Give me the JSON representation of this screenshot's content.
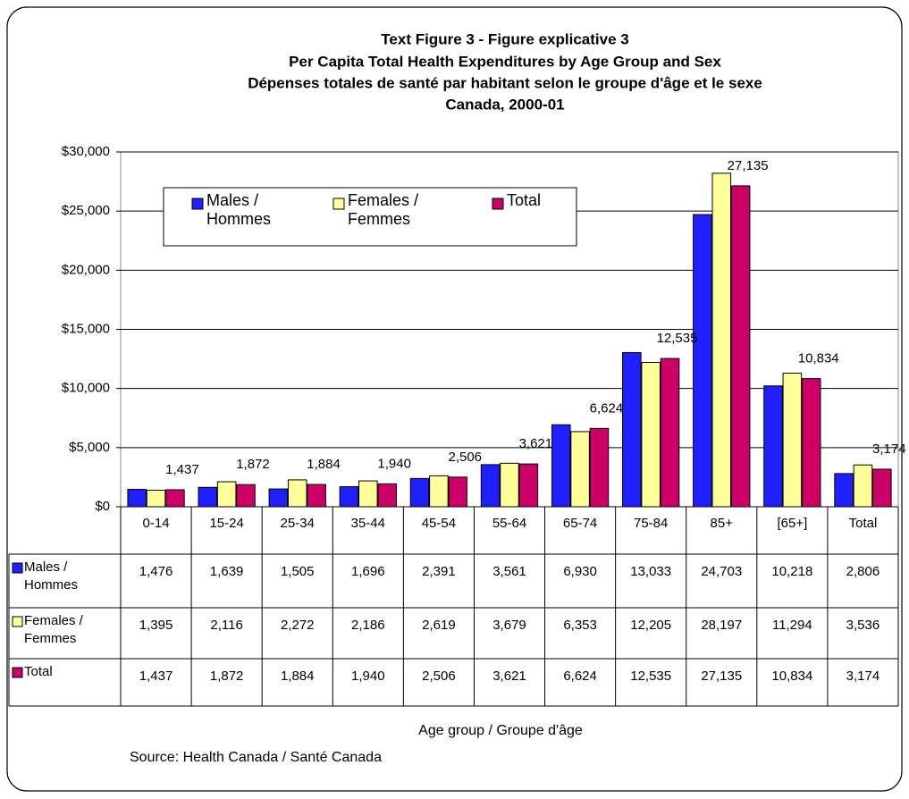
{
  "chart_data": {
    "type": "bar",
    "title": [
      "Text Figure 3 - Figure explicative 3",
      "Per Capita Total Health Expenditures by Age Group and Sex",
      "Dépenses totales de santé par habitant selon le groupe d'âge et le sexe",
      "Canada, 2000-01"
    ],
    "x_label": "Age group / Groupe d'âge",
    "source": "Source: Health Canada / Santé Canada",
    "categories": [
      "0-14",
      "15-24",
      "25-34",
      "35-44",
      "45-54",
      "55-64",
      "65-74",
      "75-84",
      "85+",
      "[65+]",
      "Total"
    ],
    "series": [
      {
        "name": "Males / Hommes",
        "color": "#1f1fff",
        "values": [
          1476,
          1639,
          1505,
          1696,
          2391,
          3561,
          6930,
          13033,
          24703,
          10218,
          2806
        ],
        "value_labels": [
          "1,476",
          "1,639",
          "1,505",
          "1,696",
          "2,391",
          "3,561",
          "6,930",
          "13,033",
          "24,703",
          "10,218",
          "2,806"
        ]
      },
      {
        "name": "Females / Femmes",
        "color": "#ffff99",
        "values": [
          1395,
          2116,
          2272,
          2186,
          2619,
          3679,
          6353,
          12205,
          28197,
          11294,
          3536
        ],
        "value_labels": [
          "1,395",
          "2,116",
          "2,272",
          "2,186",
          "2,619",
          "3,679",
          "6,353",
          "12,205",
          "28,197",
          "11,294",
          "3,536"
        ]
      },
      {
        "name": "Total",
        "color": "#cc0066",
        "values": [
          1437,
          1872,
          1884,
          1940,
          2506,
          3621,
          6624,
          12535,
          27135,
          10834,
          3174
        ],
        "value_labels": [
          "1,437",
          "1,872",
          "1,884",
          "1,940",
          "2,506",
          "3,621",
          "6,624",
          "12,535",
          "27,135",
          "10,834",
          "3,174"
        ]
      }
    ],
    "ylim": [
      0,
      30000
    ],
    "yticks": [
      {
        "value": 0,
        "label": "$0"
      },
      {
        "value": 5000,
        "label": "$5,000"
      },
      {
        "value": 10000,
        "label": "$10,000"
      },
      {
        "value": 15000,
        "label": "$15,000"
      },
      {
        "value": 20000,
        "label": "$20,000"
      },
      {
        "value": 25000,
        "label": "$25,000"
      },
      {
        "value": 30000,
        "label": "$30,000"
      }
    ],
    "grid": true,
    "data_labels_series": 2
  }
}
